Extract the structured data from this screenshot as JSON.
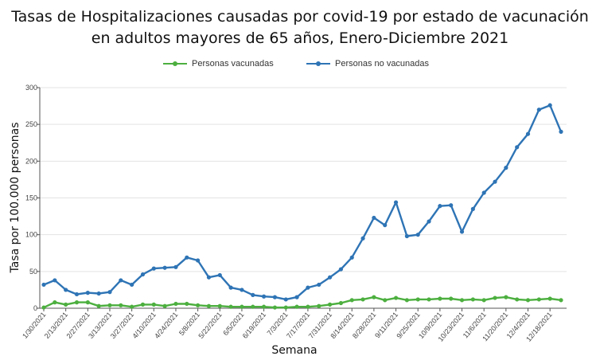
{
  "chart_data": {
    "type": "line",
    "title_lines": [
      "Tasas de Hospitalizaciones causadas por covid-19 por estado de vacunación",
      "en adultos mayores de 65 años, Enero-Diciembre 2021"
    ],
    "xlabel": "Semana",
    "ylabel": "Tasa por 100.000 personas",
    "ylim": [
      0,
      300
    ],
    "yticks": [
      0,
      50,
      100,
      150,
      200,
      250,
      300
    ],
    "grid": true,
    "legend_position": "top",
    "x_tick_labels": [
      "1/30/2021",
      "2/13/2021",
      "2/27/2021",
      "3/13/2021",
      "3/27/2021",
      "4/10/2021",
      "4/24/2021",
      "5/8/2021",
      "5/22/2021",
      "6/5/2021",
      "6/19/2021",
      "7/3/2021",
      "7/17/2021",
      "7/31/2021",
      "8/14/2021",
      "8/28/2021",
      "9/11/2021",
      "9/25/2021",
      "10/9/2021",
      "10/23/2021",
      "11/6/2021",
      "11/20/2021",
      "12/4/2021",
      "12/18/2021"
    ],
    "x": [
      "1/30/2021",
      "2/6/2021",
      "2/13/2021",
      "2/20/2021",
      "2/27/2021",
      "3/6/2021",
      "3/13/2021",
      "3/20/2021",
      "3/27/2021",
      "4/3/2021",
      "4/10/2021",
      "4/17/2021",
      "4/24/2021",
      "5/1/2021",
      "5/8/2021",
      "5/15/2021",
      "5/22/2021",
      "5/29/2021",
      "6/5/2021",
      "6/12/2021",
      "6/19/2021",
      "6/26/2021",
      "7/3/2021",
      "7/10/2021",
      "7/17/2021",
      "7/24/2021",
      "7/31/2021",
      "8/7/2021",
      "8/14/2021",
      "8/21/2021",
      "8/28/2021",
      "9/4/2021",
      "9/11/2021",
      "9/18/2021",
      "9/25/2021",
      "10/2/2021",
      "10/9/2021",
      "10/16/2021",
      "10/23/2021",
      "10/30/2021",
      "11/6/2021",
      "11/13/2021",
      "11/20/2021",
      "11/27/2021",
      "12/4/2021",
      "12/11/2021",
      "12/18/2021",
      "12/25/2021"
    ],
    "series": [
      {
        "name": "Personas vacunadas",
        "color": "#4caf3f",
        "values": [
          1,
          8,
          5,
          8,
          8,
          3,
          4,
          4,
          2,
          5,
          5,
          3,
          6,
          6,
          4,
          3,
          3,
          2,
          2,
          2,
          2,
          1,
          1,
          2,
          2,
          3,
          5,
          7,
          11,
          12,
          15,
          11,
          14,
          11,
          12,
          12,
          13,
          13,
          11,
          12,
          11,
          14,
          15,
          12,
          11,
          12,
          13,
          11
        ]
      },
      {
        "name": "Personas no vacunadas",
        "color": "#2e74b5",
        "values": [
          32,
          38,
          25,
          19,
          21,
          20,
          22,
          38,
          32,
          46,
          54,
          55,
          56,
          69,
          65,
          42,
          45,
          28,
          25,
          18,
          16,
          15,
          12,
          15,
          28,
          32,
          42,
          53,
          69,
          95,
          123,
          113,
          144,
          98,
          100,
          118,
          139,
          140,
          104,
          135,
          157,
          172,
          191,
          219,
          237,
          270,
          276,
          240
        ]
      }
    ]
  }
}
